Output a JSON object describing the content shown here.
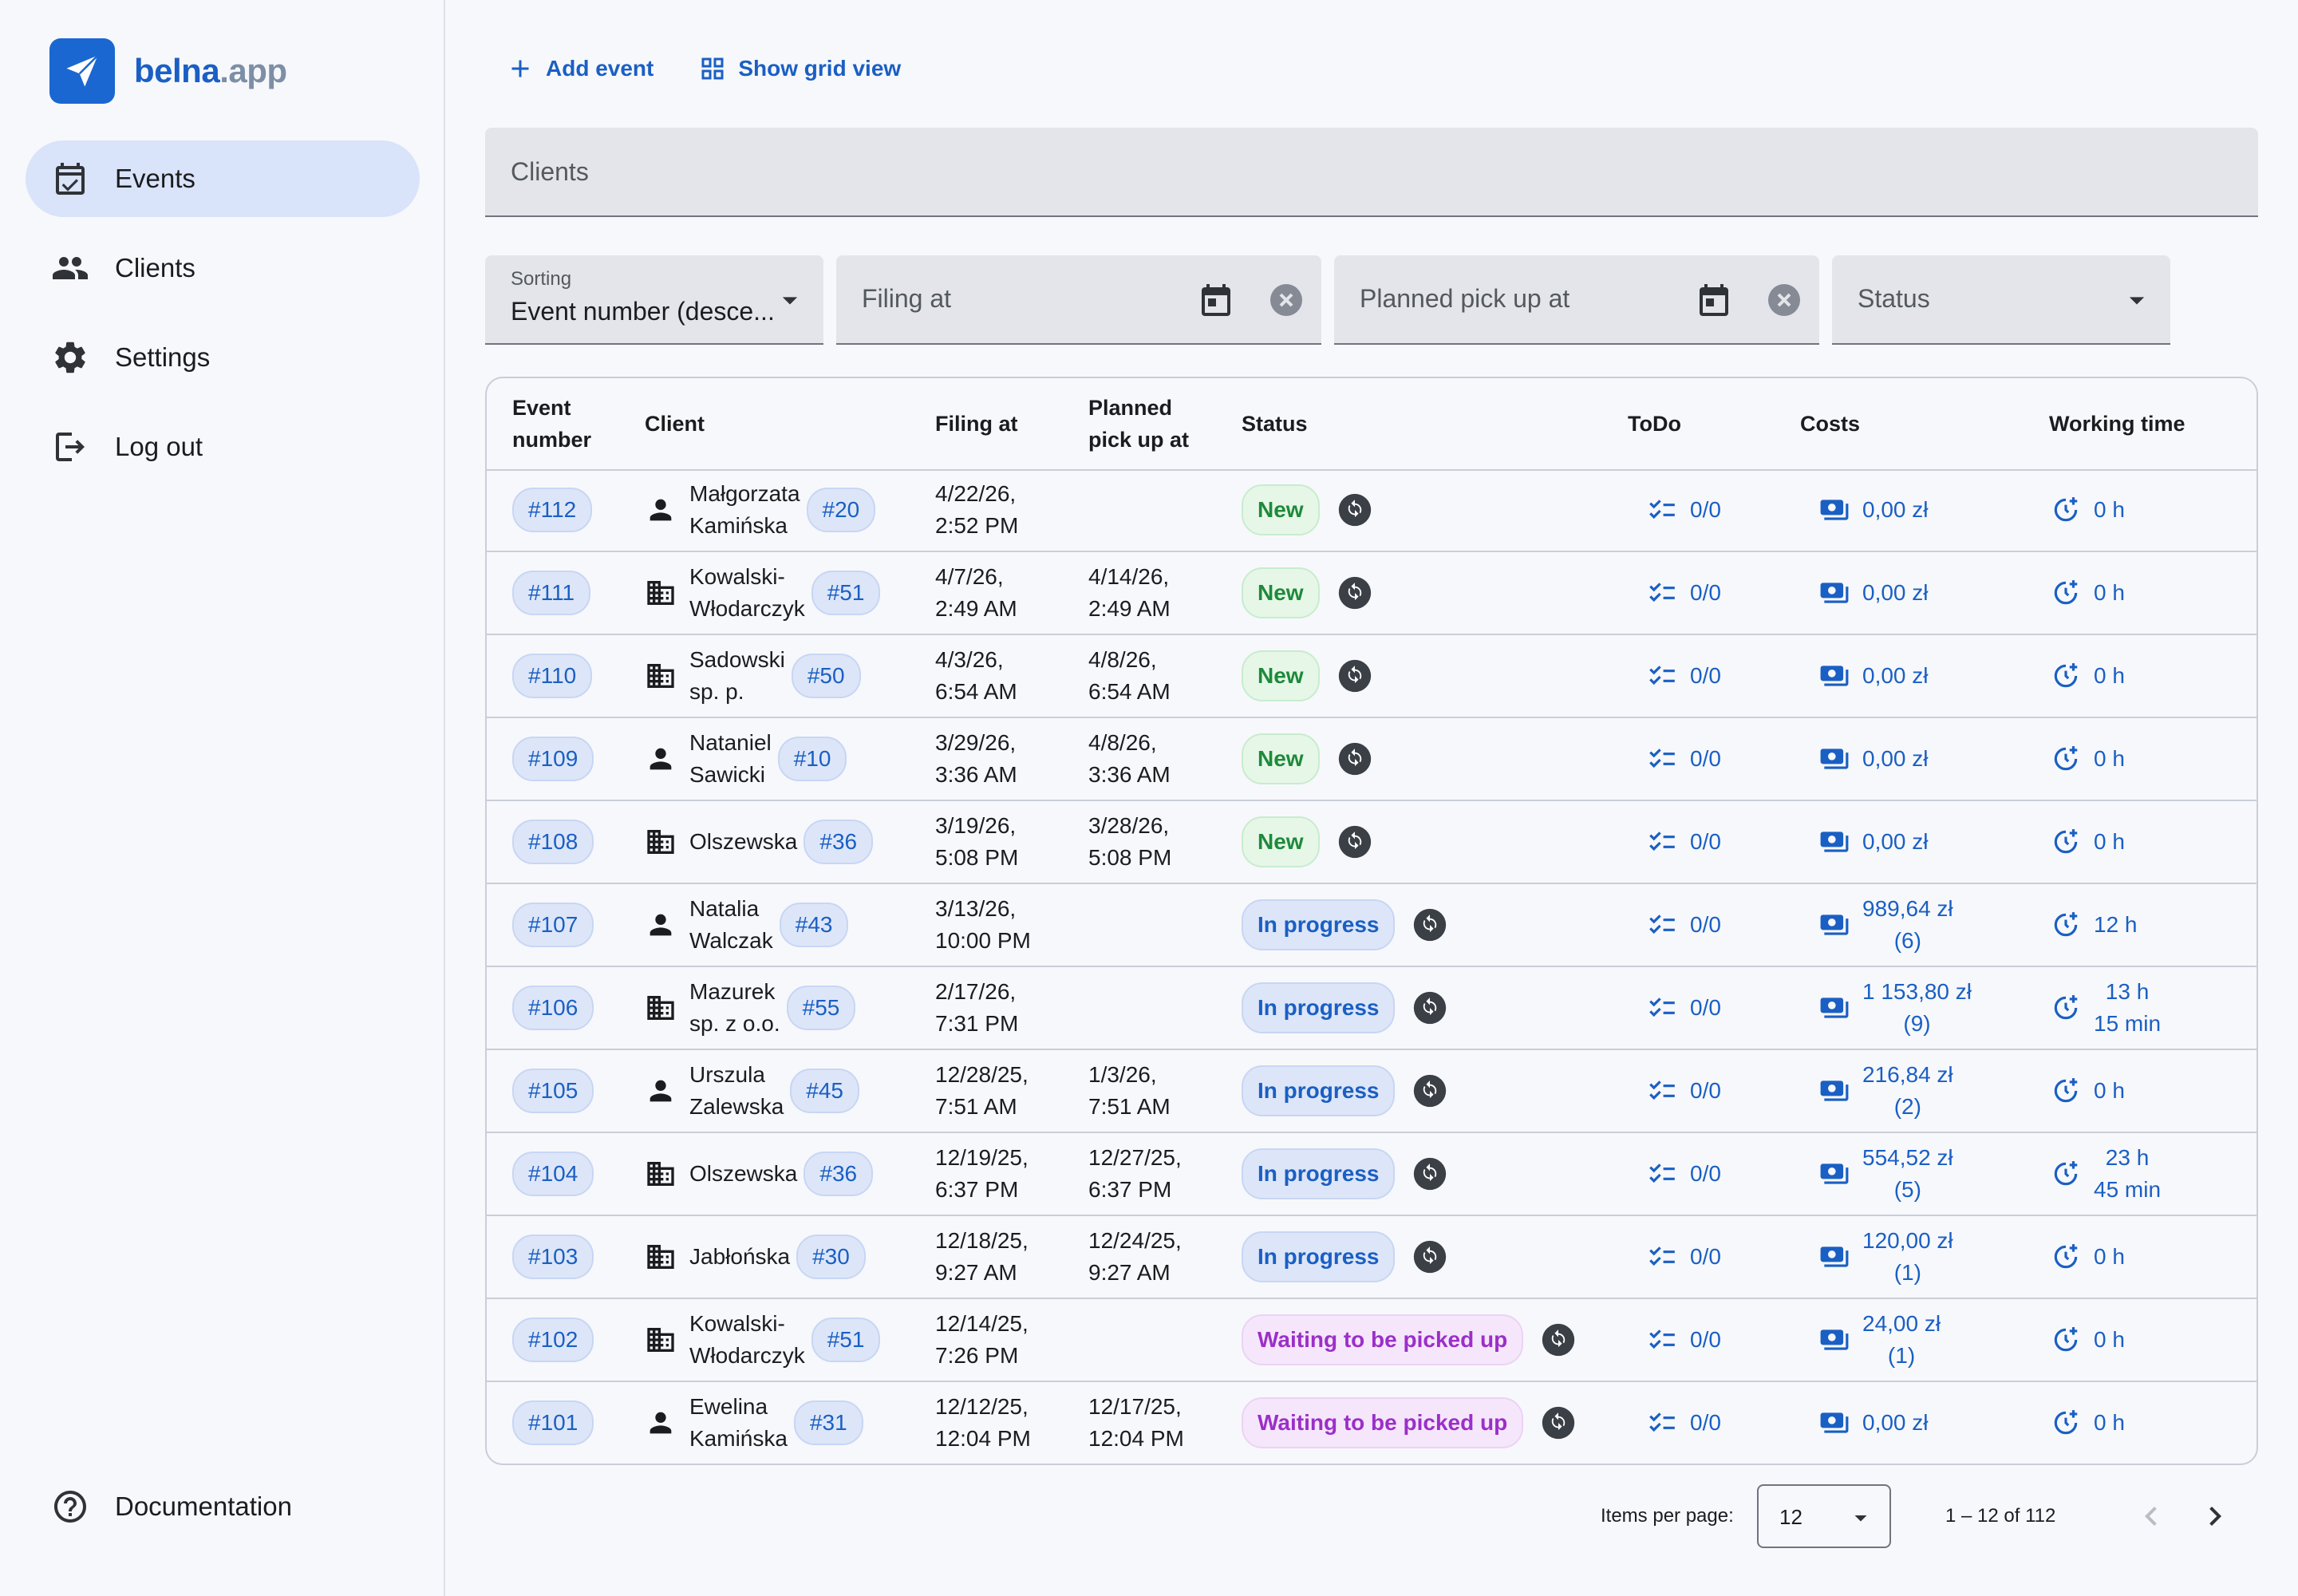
{
  "app": {
    "name_primary": "belna",
    "name_secondary": ".app"
  },
  "sidebar": {
    "items": [
      {
        "label": "Events",
        "icon": "calendar-check-icon",
        "active": true
      },
      {
        "label": "Clients",
        "icon": "people-icon"
      },
      {
        "label": "Settings",
        "icon": "gear-icon"
      },
      {
        "label": "Log out",
        "icon": "logout-icon"
      }
    ],
    "documentation": "Documentation"
  },
  "toolbar": {
    "add_event": "Add event",
    "grid_view": "Show grid view"
  },
  "clients_field": {
    "placeholder": "Clients"
  },
  "filters": {
    "sorting": {
      "label": "Sorting",
      "value": "Event number (desce..."
    },
    "filing_at": {
      "placeholder": "Filing at"
    },
    "planned_pick_up_at": {
      "placeholder": "Planned pick up at"
    },
    "status": {
      "placeholder": "Status"
    }
  },
  "table": {
    "headers": {
      "event_number": [
        "Event",
        "number"
      ],
      "client": "Client",
      "filing_at": "Filing at",
      "planned": [
        "Planned",
        "pick up at"
      ],
      "status": "Status",
      "todo": "ToDo",
      "costs": "Costs",
      "working_time": "Working time"
    },
    "rows": [
      {
        "num": "#112",
        "client_type": "person",
        "client": [
          "Małgorzata",
          "Kamińska"
        ],
        "client_id": "#20",
        "filing": [
          "4/22/26,",
          "2:52 PM"
        ],
        "planned": [
          "",
          ""
        ],
        "status": "New",
        "todo": "0/0",
        "costs": [
          "0,00 zł",
          ""
        ],
        "time": [
          "0 h",
          ""
        ]
      },
      {
        "num": "#111",
        "client_type": "company",
        "client": [
          "Kowalski-",
          "Włodarczyk"
        ],
        "client_id": "#51",
        "filing": [
          "4/7/26,",
          "2:49 AM"
        ],
        "planned": [
          "4/14/26,",
          "2:49 AM"
        ],
        "status": "New",
        "todo": "0/0",
        "costs": [
          "0,00 zł",
          ""
        ],
        "time": [
          "0 h",
          ""
        ]
      },
      {
        "num": "#110",
        "client_type": "company",
        "client": [
          "Sadowski",
          "sp. p."
        ],
        "client_id": "#50",
        "filing": [
          "4/3/26,",
          "6:54 AM"
        ],
        "planned": [
          "4/8/26,",
          "6:54 AM"
        ],
        "status": "New",
        "todo": "0/0",
        "costs": [
          "0,00 zł",
          ""
        ],
        "time": [
          "0 h",
          ""
        ]
      },
      {
        "num": "#109",
        "client_type": "person",
        "client": [
          "Nataniel",
          "Sawicki"
        ],
        "client_id": "#10",
        "filing": [
          "3/29/26,",
          "3:36 AM"
        ],
        "planned": [
          "4/8/26,",
          "3:36 AM"
        ],
        "status": "New",
        "todo": "0/0",
        "costs": [
          "0,00 zł",
          ""
        ],
        "time": [
          "0 h",
          ""
        ]
      },
      {
        "num": "#108",
        "client_type": "company",
        "client": [
          "Olszewska",
          ""
        ],
        "client_id": "#36",
        "filing": [
          "3/19/26,",
          "5:08 PM"
        ],
        "planned": [
          "3/28/26,",
          "5:08 PM"
        ],
        "status": "New",
        "todo": "0/0",
        "costs": [
          "0,00 zł",
          ""
        ],
        "time": [
          "0 h",
          ""
        ]
      },
      {
        "num": "#107",
        "client_type": "person",
        "client": [
          "Natalia",
          "Walczak"
        ],
        "client_id": "#43",
        "filing": [
          "3/13/26,",
          "10:00 PM"
        ],
        "planned": [
          "",
          ""
        ],
        "status": "In progress",
        "todo": "0/0",
        "costs": [
          "989,64 zł",
          "(6)"
        ],
        "time": [
          "12 h",
          ""
        ]
      },
      {
        "num": "#106",
        "client_type": "company",
        "client": [
          "Mazurek",
          "sp. z o.o."
        ],
        "client_id": "#55",
        "filing": [
          "2/17/26,",
          "7:31 PM"
        ],
        "planned": [
          "",
          ""
        ],
        "status": "In progress",
        "todo": "0/0",
        "costs": [
          "1 153,80 zł",
          "(9)"
        ],
        "time": [
          "13 h",
          "15 min"
        ]
      },
      {
        "num": "#105",
        "client_type": "person",
        "client": [
          "Urszula",
          "Zalewska"
        ],
        "client_id": "#45",
        "filing": [
          "12/28/25,",
          "7:51 AM"
        ],
        "planned": [
          "1/3/26,",
          "7:51 AM"
        ],
        "status": "In progress",
        "todo": "0/0",
        "costs": [
          "216,84 zł",
          "(2)"
        ],
        "time": [
          "0 h",
          ""
        ]
      },
      {
        "num": "#104",
        "client_type": "company",
        "client": [
          "Olszewska",
          ""
        ],
        "client_id": "#36",
        "filing": [
          "12/19/25,",
          "6:37 PM"
        ],
        "planned": [
          "12/27/25,",
          "6:37 PM"
        ],
        "status": "In progress",
        "todo": "0/0",
        "costs": [
          "554,52 zł",
          "(5)"
        ],
        "time": [
          "23 h",
          "45 min"
        ]
      },
      {
        "num": "#103",
        "client_type": "company",
        "client": [
          "Jabłońska",
          ""
        ],
        "client_id": "#30",
        "filing": [
          "12/18/25,",
          "9:27 AM"
        ],
        "planned": [
          "12/24/25,",
          "9:27 AM"
        ],
        "status": "In progress",
        "todo": "0/0",
        "costs": [
          "120,00 zł",
          "(1)"
        ],
        "time": [
          "0 h",
          ""
        ]
      },
      {
        "num": "#102",
        "client_type": "company",
        "client": [
          "Kowalski-",
          "Włodarczyk"
        ],
        "client_id": "#51",
        "filing": [
          "12/14/25,",
          "7:26 PM"
        ],
        "planned": [
          "",
          ""
        ],
        "status": "Waiting to be picked up",
        "todo": "0/0",
        "costs": [
          "24,00 zł",
          "(1)"
        ],
        "time": [
          "0 h",
          ""
        ]
      },
      {
        "num": "#101",
        "client_type": "person",
        "client": [
          "Ewelina",
          "Kamińska"
        ],
        "client_id": "#31",
        "filing": [
          "12/12/25,",
          "12:04 PM"
        ],
        "planned": [
          "12/17/25,",
          "12:04 PM"
        ],
        "status": "Waiting to be picked up",
        "todo": "0/0",
        "costs": [
          "0,00 zł",
          ""
        ],
        "time": [
          "0 h",
          ""
        ]
      }
    ]
  },
  "status_colors": {
    "New": {
      "bg": "#e6f7e8",
      "border": "#c8ecce",
      "fg": "#1e8a3a"
    },
    "In progress": {
      "bg": "#dde6f8",
      "border": "#c8d6f4",
      "fg": "#1a5fc4"
    },
    "Waiting to be picked up": {
      "bg": "#f6e6fb",
      "border": "#ecd2f5",
      "fg": "#9b2fc9"
    }
  },
  "pagination": {
    "items_per_page_label": "Items per page:",
    "items_per_page": "12",
    "range": "1 – 12 of 112"
  }
}
